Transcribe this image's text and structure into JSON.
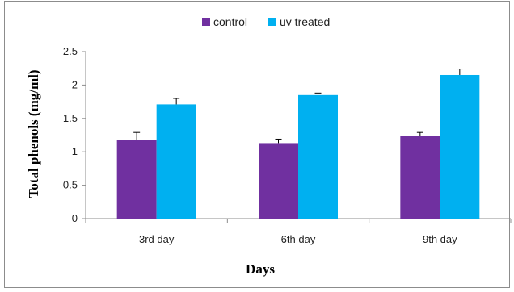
{
  "chart_data": {
    "type": "bar",
    "categories": [
      "3rd day",
      "6th day",
      "9th day"
    ],
    "series": [
      {
        "name": "control",
        "values": [
          1.18,
          1.13,
          1.24
        ],
        "errors": [
          0.11,
          0.06,
          0.05
        ],
        "color": "#7030a0"
      },
      {
        "name": "uv treated",
        "values": [
          1.71,
          1.85,
          2.15
        ],
        "errors": [
          0.09,
          0.03,
          0.09
        ],
        "color": "#00b0f0"
      }
    ],
    "title": "",
    "xlabel": "Days",
    "ylabel": "Total phenols (mg/ml)",
    "ylim": [
      0,
      2.5
    ],
    "yticks": [
      "0",
      "0.5",
      "1",
      "1.5",
      "2",
      "2.5"
    ],
    "grid": false,
    "legend_position": "top"
  }
}
